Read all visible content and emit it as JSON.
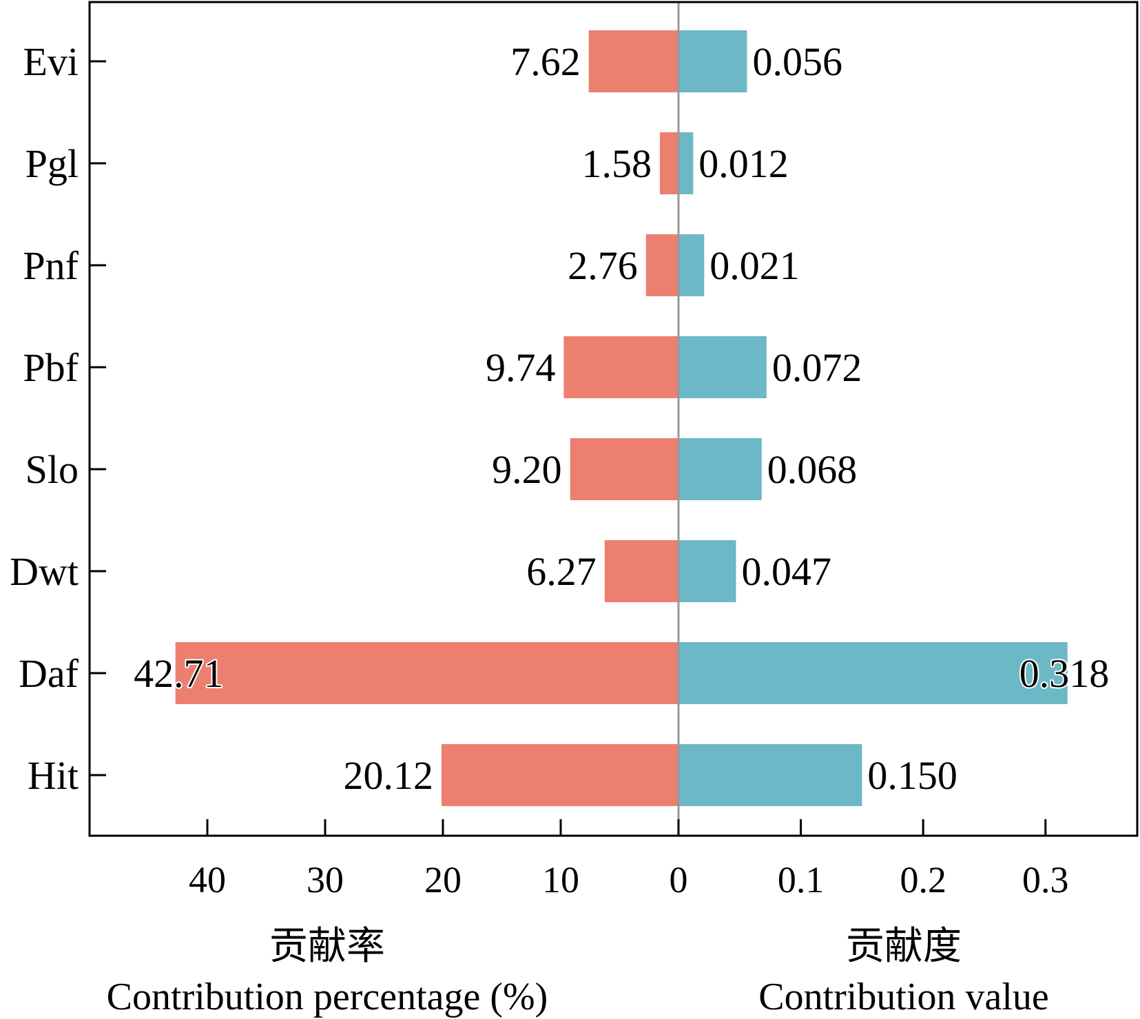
{
  "chart_data": {
    "type": "bar",
    "orientation": "horizontal",
    "layout": "diverging (back-to-back), shared category axis",
    "categories": [
      "Evi",
      "Pgl",
      "Pnf",
      "Pbf",
      "Slo",
      "Dwt",
      "Daf",
      "Hit"
    ],
    "series": [
      {
        "side": "left",
        "values": [
          7.62,
          1.58,
          2.76,
          9.74,
          9.2,
          6.27,
          42.71,
          20.12
        ],
        "labels": [
          "7.62",
          "1.58",
          "2.76",
          "9.74",
          "9.20",
          "6.27",
          "42.71",
          "20.12"
        ],
        "color": "#ec7f70",
        "axis_title_cn": "贡献率",
        "axis_title_en": "Contribution percentage (%)",
        "xlim": [
          0,
          50
        ],
        "ticks": [
          40,
          30,
          20,
          10,
          0
        ],
        "tick_labels": [
          "40",
          "30",
          "20",
          "10",
          "0"
        ]
      },
      {
        "side": "right",
        "values": [
          0.056,
          0.012,
          0.021,
          0.072,
          0.068,
          0.047,
          0.318,
          0.15
        ],
        "labels": [
          "0.056",
          "0.012",
          "0.021",
          "0.072",
          "0.068",
          "0.047",
          "0.318",
          "0.150"
        ],
        "color": "#6db8c6",
        "axis_title_cn": "贡献度",
        "axis_title_en": "Contribution value",
        "xlim": [
          0,
          0.375
        ],
        "ticks": [
          0.1,
          0.2,
          0.3
        ],
        "tick_labels": [
          "0.1",
          "0.2",
          "0.3"
        ]
      }
    ],
    "center_line_color": "#999999",
    "grid": false,
    "legend": "none"
  }
}
